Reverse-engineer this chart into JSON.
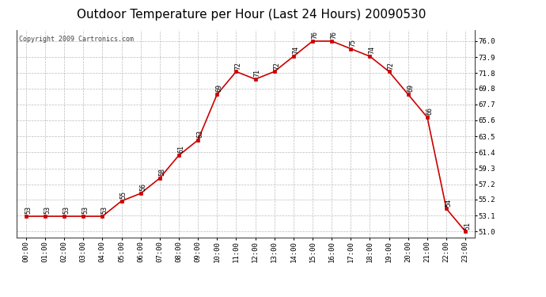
{
  "title": "Outdoor Temperature per Hour (Last 24 Hours) 20090530",
  "copyright": "Copyright 2009 Cartronics.com",
  "hours": [
    "00:00",
    "01:00",
    "02:00",
    "03:00",
    "04:00",
    "05:00",
    "06:00",
    "07:00",
    "08:00",
    "09:00",
    "10:00",
    "11:00",
    "12:00",
    "13:00",
    "14:00",
    "15:00",
    "16:00",
    "17:00",
    "18:00",
    "19:00",
    "20:00",
    "21:00",
    "22:00",
    "23:00"
  ],
  "temps": [
    53,
    53,
    53,
    53,
    53,
    55,
    56,
    58,
    61,
    63,
    69,
    72,
    71,
    72,
    74,
    76,
    76,
    75,
    74,
    72,
    69,
    66,
    54,
    51
  ],
  "line_color": "#cc0000",
  "marker_color": "#cc0000",
  "bg_color": "#ffffff",
  "grid_color": "#bbbbbb",
  "title_fontsize": 11,
  "copyright_fontsize": 6,
  "annotation_fontsize": 6,
  "tick_fontsize": 6.5,
  "y_ticks": [
    51.0,
    53.1,
    55.2,
    57.2,
    59.3,
    61.4,
    63.5,
    65.6,
    67.7,
    69.8,
    71.8,
    73.9,
    76.0
  ],
  "ylim": [
    50.2,
    77.5
  ],
  "xlim": [
    -0.5,
    23.5
  ]
}
